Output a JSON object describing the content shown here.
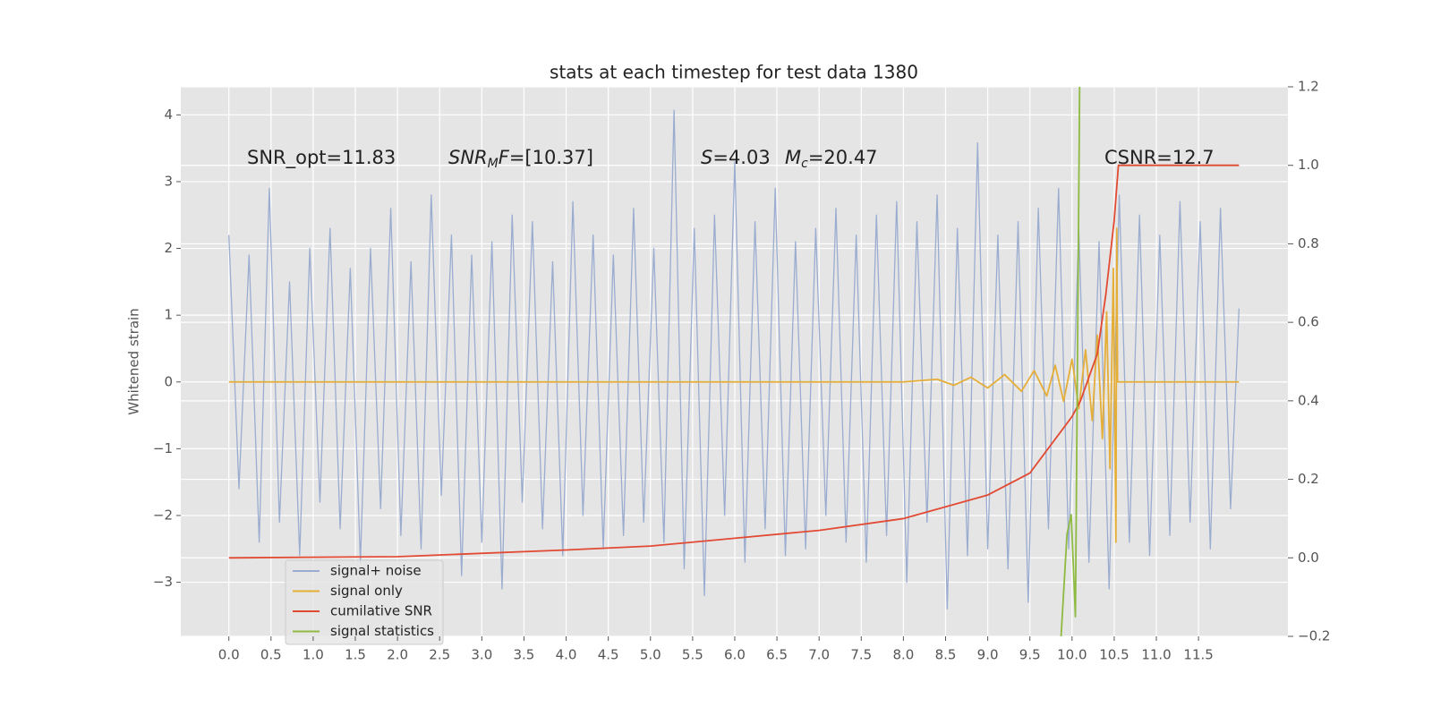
{
  "chart_data": {
    "type": "line",
    "title": "stats at each timestep for test data 1380",
    "ylabel": "Whitened strain",
    "xlim": [
      -0.57,
      12.56
    ],
    "ylim": [
      -3.81,
      4.42
    ],
    "y2lim": [
      -0.2,
      1.2
    ],
    "xticks": [
      {
        "value": 0,
        "label": "0.0"
      },
      0.5,
      {
        "value": 1,
        "label": "1.0"
      },
      1.5,
      {
        "value": 2,
        "label": "2.0"
      },
      2.5,
      {
        "value": 3,
        "label": "3.0"
      },
      3.5,
      {
        "value": 4,
        "label": "4.0"
      },
      4.5,
      {
        "value": 5,
        "label": "5.0"
      },
      5.5,
      {
        "value": 6,
        "label": "6.0"
      },
      6.5,
      {
        "value": 7,
        "label": "7.0"
      },
      7.5,
      {
        "value": 8,
        "label": "8.0"
      },
      8.5,
      {
        "value": 9,
        "label": "9.0"
      },
      9.5,
      {
        "value": 10,
        "label": "10.0"
      },
      10.5,
      {
        "value": 11,
        "label": "11.0"
      },
      11.5
    ],
    "yticks": [
      {
        "value": -3,
        "label": "−3"
      },
      {
        "value": -2,
        "label": "−2"
      },
      {
        "value": -1,
        "label": "−1"
      },
      0,
      1,
      2,
      3,
      4
    ],
    "y2ticks": [
      {
        "value": -0.2,
        "label": "−0.2"
      },
      {
        "value": 0,
        "label": "0.0"
      },
      0.2,
      0.4,
      0.6,
      0.8,
      {
        "value": 1,
        "label": "1.0"
      },
      1.2
    ],
    "grid": true,
    "legend": "lower left",
    "annotations": [
      [
        {
          "text": "SNR_opt=11.83"
        }
      ],
      [
        {
          "text": "SNR",
          "italic": true
        },
        {
          "text": "M",
          "italic": true,
          "sub": true
        },
        {
          "text": "F",
          "italic": true
        },
        {
          "text": "=[10.37]"
        }
      ],
      [
        {
          "text": "S",
          "italic": true
        },
        {
          "text": "=4.03"
        }
      ],
      [
        {
          "text": "M",
          "italic": true
        },
        {
          "text": "c",
          "italic": true,
          "sub": true
        },
        {
          "text": "=20.47"
        }
      ],
      [
        {
          "text": "CSNR=12.7"
        }
      ]
    ],
    "series": [
      {
        "name": "signal+ noise",
        "color": "#9aaccf",
        "x": [
          0,
          0.12,
          0.24,
          0.36,
          0.48,
          0.6,
          0.72,
          0.84,
          0.96,
          1.08,
          1.2,
          1.32,
          1.44,
          1.56,
          1.68,
          1.8,
          1.92,
          2.04,
          2.16,
          2.28,
          2.4,
          2.52,
          2.64,
          2.76,
          2.88,
          3,
          3.12,
          3.24,
          3.36,
          3.48,
          3.6,
          3.72,
          3.84,
          3.96,
          4.08,
          4.2,
          4.32,
          4.44,
          4.56,
          4.68,
          4.8,
          4.92,
          5.04,
          5.16,
          5.28,
          5.4,
          5.52,
          5.64,
          5.76,
          5.88,
          6,
          6.12,
          6.24,
          6.36,
          6.48,
          6.6,
          6.72,
          6.84,
          6.96,
          7.08,
          7.2,
          7.32,
          7.44,
          7.56,
          7.68,
          7.8,
          7.92,
          8.04,
          8.16,
          8.28,
          8.4,
          8.52,
          8.64,
          8.76,
          8.88,
          9,
          9.12,
          9.24,
          9.36,
          9.48,
          9.6,
          9.72,
          9.84,
          9.96,
          10.08,
          10.2,
          10.32,
          10.44,
          10.56,
          10.68,
          10.8,
          10.92,
          11.04,
          11.16,
          11.28,
          11.4,
          11.52,
          11.64,
          11.76,
          11.88,
          11.98
        ],
        "values": [
          2.2,
          -1.6,
          1.9,
          -2.4,
          2.9,
          -2.1,
          1.5,
          -2.6,
          2.0,
          -1.8,
          2.3,
          -2.2,
          1.7,
          -2.7,
          2.0,
          -1.9,
          2.6,
          -2.3,
          1.8,
          -2.5,
          2.8,
          -1.7,
          2.2,
          -2.9,
          1.9,
          -2.4,
          2.1,
          -3.1,
          2.5,
          -1.8,
          2.4,
          -2.2,
          1.8,
          -2.6,
          2.7,
          -2.0,
          2.2,
          -2.5,
          1.9,
          -2.3,
          2.6,
          -2.1,
          2.0,
          -2.4,
          4.07,
          -2.8,
          2.3,
          -3.2,
          2.5,
          -2.0,
          3.3,
          -2.7,
          2.4,
          -2.2,
          2.9,
          -2.6,
          2.1,
          -2.5,
          2.3,
          -2.0,
          2.6,
          -2.4,
          2.2,
          -2.7,
          2.5,
          -2.3,
          2.7,
          -3.0,
          2.4,
          -2.1,
          2.8,
          -3.4,
          2.3,
          -2.6,
          3.58,
          -2.5,
          2.2,
          -2.8,
          2.4,
          -3.3,
          2.6,
          -2.2,
          2.9,
          -2.5,
          2.3,
          -2.7,
          2.1,
          -3.1,
          2.8,
          -2.4,
          2.5,
          -2.6,
          2.2,
          -2.3,
          2.7,
          -2.1,
          2.4,
          -2.5,
          2.6,
          -1.9,
          1.1
        ]
      },
      {
        "name": "signal only",
        "color": "#e5ae38",
        "x": [
          0,
          8,
          8.4,
          8.6,
          8.8,
          9,
          9.2,
          9.4,
          9.55,
          9.7,
          9.8,
          9.9,
          10,
          10.08,
          10.16,
          10.24,
          10.3,
          10.36,
          10.41,
          10.45,
          10.49,
          10.52,
          10.53,
          10.54,
          11.98
        ],
        "values": [
          0,
          0,
          0.04,
          -0.05,
          0.07,
          -0.09,
          0.11,
          -0.14,
          0.17,
          -0.21,
          0.25,
          -0.29,
          0.34,
          -0.4,
          0.48,
          -0.58,
          0.7,
          -0.85,
          1.05,
          -1.3,
          1.7,
          -2.4,
          2.3,
          0,
          0
        ]
      },
      {
        "name": "cumilative SNR",
        "color": "#e24a33",
        "axis": "y2",
        "x": [
          0,
          2,
          4,
          5,
          6,
          7,
          8,
          9,
          9.5,
          10,
          10.1,
          10.3,
          10.4,
          10.5,
          10.55,
          11.98
        ],
        "values": [
          0,
          0.003,
          0.02,
          0.03,
          0.05,
          0.07,
          0.1,
          0.16,
          0.216,
          0.36,
          0.4,
          0.52,
          0.67,
          0.86,
          1.0,
          1.0
        ]
      },
      {
        "name": "signal statistics",
        "color": "#8eba42",
        "axis": "y2",
        "x": [
          9.87,
          9.94,
          9.99,
          10.04,
          10.09
        ],
        "values": [
          -0.2,
          0.06,
          0.11,
          -0.15,
          1.2
        ]
      }
    ]
  }
}
